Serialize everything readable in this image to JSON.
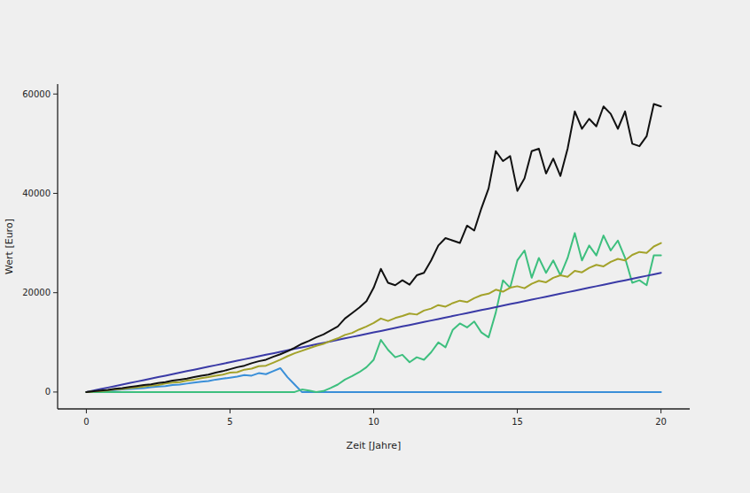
{
  "chart_data": {
    "type": "line",
    "x_label": "Zeit [Jahre]",
    "y_label": "Wert [Euro]",
    "xlim": [
      -1,
      21
    ],
    "xticks": [
      0,
      5,
      10,
      15,
      20
    ],
    "ylim": [
      -3400,
      62000
    ],
    "yticks": [
      0,
      20000,
      40000,
      60000
    ],
    "grid": false,
    "x": [
      0,
      0.25,
      0.5,
      0.75,
      1,
      1.25,
      1.5,
      1.75,
      2,
      2.25,
      2.5,
      2.75,
      3,
      3.25,
      3.5,
      3.75,
      4,
      4.25,
      4.5,
      4.75,
      5,
      5.25,
      5.5,
      5.75,
      6,
      6.25,
      6.5,
      6.75,
      7,
      7.25,
      7.5,
      7.75,
      8,
      8.25,
      8.5,
      8.75,
      9,
      9.25,
      9.5,
      9.75,
      10,
      10.25,
      10.5,
      10.75,
      11,
      11.25,
      11.5,
      11.75,
      12,
      12.25,
      12.5,
      12.75,
      13,
      13.25,
      13.5,
      13.75,
      14,
      14.25,
      14.5,
      14.75,
      15,
      15.25,
      15.5,
      15.75,
      16,
      16.25,
      16.5,
      16.75,
      17,
      17.25,
      17.5,
      17.75,
      18,
      18.25,
      18.5,
      18.75,
      19,
      19.25,
      19.5,
      19.75,
      20
    ],
    "series": [
      {
        "color": "#3a8fd8",
        "values": [
          0,
          100,
          200,
          300,
          400,
          500,
          600,
          700,
          800,
          950,
          1100,
          1200,
          1400,
          1500,
          1700,
          1900,
          2100,
          2200,
          2500,
          2700,
          2900,
          3100,
          3400,
          3300,
          3800,
          3600,
          4200,
          4800,
          3000,
          1500,
          0,
          0,
          0,
          0,
          0,
          0,
          0,
          0,
          0,
          0,
          0,
          0,
          0,
          0,
          0,
          0,
          0,
          0,
          0,
          0,
          0,
          0,
          0,
          0,
          0,
          0,
          0,
          0,
          0,
          0,
          0,
          0,
          0,
          0,
          0,
          0,
          0,
          0,
          0,
          0,
          0,
          0,
          0,
          0,
          0,
          0,
          0,
          0,
          0,
          0,
          0
        ]
      },
      {
        "color": "#3dbf7e",
        "values": [
          0,
          0,
          0,
          0,
          0,
          0,
          0,
          0,
          0,
          0,
          0,
          0,
          0,
          0,
          0,
          0,
          0,
          0,
          0,
          0,
          0,
          0,
          0,
          0,
          0,
          0,
          0,
          0,
          0,
          0,
          500,
          300,
          0,
          200,
          800,
          1500,
          2500,
          3200,
          4000,
          5000,
          6500,
          10500,
          8500,
          7000,
          7500,
          6000,
          7000,
          6500,
          8000,
          10000,
          9000,
          12500,
          13800,
          13000,
          14200,
          12000,
          11000,
          16000,
          22500,
          21000,
          26500,
          28500,
          23000,
          27000,
          24000,
          26500,
          23500,
          27000,
          32000,
          26500,
          29500,
          27500,
          31500,
          28500,
          30500,
          27000,
          22000,
          22500,
          21500,
          27500,
          27500
        ]
      },
      {
        "color": "#3a3aa6",
        "values": [
          0,
          300,
          600,
          900,
          1200,
          1500,
          1800,
          2100,
          2400,
          2700,
          3000,
          3300,
          3600,
          3900,
          4200,
          4500,
          4800,
          5100,
          5400,
          5700,
          6000,
          6300,
          6600,
          6900,
          7200,
          7500,
          7800,
          8100,
          8400,
          8700,
          9000,
          9300,
          9600,
          9900,
          10200,
          10500,
          10800,
          11100,
          11400,
          11700,
          12000,
          12300,
          12600,
          12900,
          13200,
          13500,
          13800,
          14100,
          14400,
          14700,
          15000,
          15300,
          15600,
          15900,
          16200,
          16500,
          16800,
          17100,
          17400,
          17700,
          18000,
          18300,
          18600,
          18900,
          19200,
          19500,
          19800,
          20100,
          20400,
          20700,
          21000,
          21300,
          21600,
          21900,
          22200,
          22500,
          22800,
          23100,
          23400,
          23700,
          24000
        ]
      },
      {
        "color": "#a3a22a",
        "values": [
          0,
          100,
          200,
          350,
          500,
          600,
          800,
          900,
          1100,
          1300,
          1400,
          1700,
          1900,
          2000,
          2300,
          2500,
          2800,
          3000,
          3300,
          3500,
          3900,
          4000,
          4500,
          4700,
          5200,
          5300,
          5900,
          6500,
          7200,
          7800,
          8300,
          8800,
          9300,
          9700,
          10300,
          10800,
          11500,
          11900,
          12600,
          13200,
          13900,
          14800,
          14300,
          14900,
          15300,
          15800,
          15600,
          16400,
          16800,
          17500,
          17200,
          17900,
          18400,
          18100,
          18900,
          19500,
          19800,
          20600,
          20200,
          21000,
          21300,
          20900,
          21800,
          22400,
          22100,
          23000,
          23500,
          23200,
          24400,
          24100,
          25000,
          25600,
          25300,
          26200,
          26800,
          26500,
          27600,
          28200,
          28000,
          29300,
          30000
        ]
      },
      {
        "color": "#111111",
        "values": [
          0,
          150,
          300,
          450,
          650,
          800,
          1000,
          1200,
          1400,
          1550,
          1800,
          2000,
          2300,
          2500,
          2700,
          3000,
          3300,
          3500,
          3900,
          4200,
          4600,
          5000,
          5300,
          5800,
          6200,
          6500,
          7100,
          7600,
          8200,
          8900,
          9700,
          10300,
          11000,
          11600,
          12400,
          13200,
          14800,
          15900,
          17000,
          18300,
          21000,
          24800,
          22000,
          21500,
          22500,
          21600,
          23500,
          24000,
          26500,
          29500,
          31000,
          30500,
          30000,
          33500,
          32500,
          37000,
          41000,
          48500,
          46500,
          47500,
          40500,
          43000,
          48500,
          49000,
          44000,
          47000,
          43500,
          49000,
          56500,
          53000,
          55000,
          53500,
          57500,
          56000,
          53000,
          56500,
          50000,
          49500,
          51500,
          58000,
          57500
        ]
      }
    ]
  }
}
